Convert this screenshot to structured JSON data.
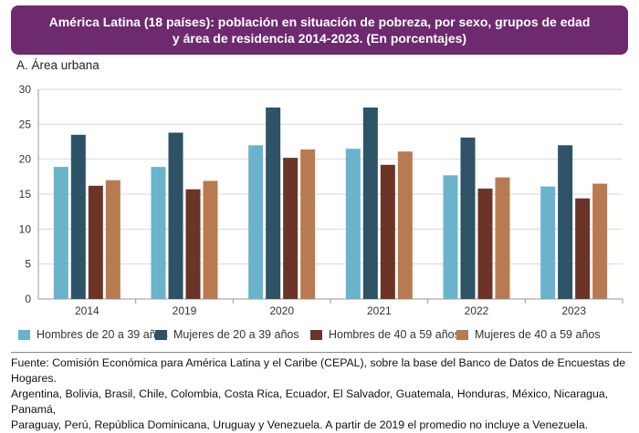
{
  "header": {
    "title_line1": "América Latina (18 países): población en situación de pobreza, por sexo, grupos de edad",
    "title_line2": "y área de residencia 2014-2023. (En porcentajes)",
    "bg_color": "#6e2a6e"
  },
  "subtitle": "A. Área urbana",
  "chart_data": {
    "type": "bar",
    "categories": [
      "2014",
      "2019",
      "2020",
      "2021",
      "2022",
      "2023"
    ],
    "series": [
      {
        "name": "Hombres de 20 a 39 años",
        "color": "#6ab3cb",
        "values": [
          18.9,
          18.9,
          22.0,
          21.5,
          17.7,
          16.1
        ]
      },
      {
        "name": "Mujeres de 20 a 39 años",
        "color": "#2e5266",
        "values": [
          23.5,
          23.8,
          27.4,
          27.4,
          23.1,
          22.0
        ]
      },
      {
        "name": "Hombres de 40 a 59 años",
        "color": "#6b3427",
        "values": [
          16.2,
          15.7,
          20.2,
          19.2,
          15.8,
          14.4
        ]
      },
      {
        "name": "Mujeres de 40 a 59 años",
        "color": "#b87a50",
        "values": [
          17.0,
          16.9,
          21.4,
          21.1,
          17.4,
          16.5
        ]
      }
    ],
    "ylim": [
      0,
      30
    ],
    "yticks": [
      0,
      5,
      10,
      15,
      20,
      25,
      30
    ],
    "legend_position": "bottom"
  },
  "source": {
    "line1": "Fuente: Comisión Económica para América Latina y el Caribe (CEPAL), sobre la base del Banco de Datos de Encuestas de Hogares.",
    "line2": "Argentina, Bolivia, Brasil, Chile, Colombia, Costa Rica, Ecuador, El Salvador, Guatemala, Honduras, México, Nicaragua, Panamá,",
    "line3": "Paraguay, Perú, República Dominicana, Uruguay y Venezuela. A partir de 2019 el promedio no incluye a Venezuela."
  }
}
